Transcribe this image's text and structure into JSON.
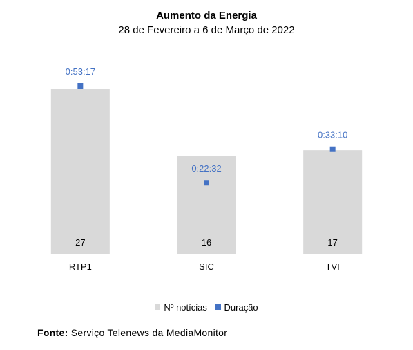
{
  "chart_data": {
    "type": "bar",
    "title": "Aumento da Energia",
    "subtitle": "28 de Fevereiro a 6 de Março de 2022",
    "categories": [
      "RTP1",
      "SIC",
      "TVI"
    ],
    "series": [
      {
        "name": "Nº notícias",
        "kind": "bar",
        "color": "#d9d9d9",
        "values": [
          27,
          16,
          17
        ],
        "labels": [
          "27",
          "16",
          "17"
        ]
      },
      {
        "name": "Duração",
        "kind": "marker",
        "color": "#4472c4",
        "values": [
          "0:53:17",
          "0:22:32",
          "0:33:10"
        ],
        "labels": [
          "0:53:17",
          "0:22:32",
          "0:33:10"
        ]
      }
    ],
    "legend_position": "bottom",
    "grid": false
  },
  "source": {
    "label": "Fonte:",
    "text": "Serviço Telenews da MediaMonitor"
  }
}
